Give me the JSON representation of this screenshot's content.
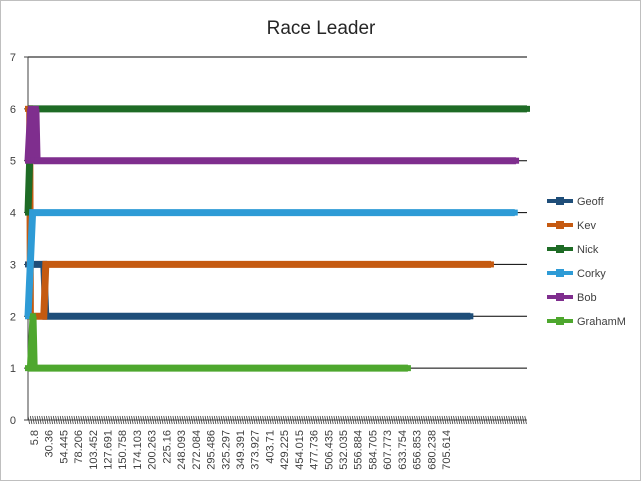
{
  "chart_data": {
    "type": "line",
    "title": "Race Leader",
    "xlabel": "",
    "ylabel": "",
    "ylim": [
      0,
      7
    ],
    "yticks": [
      0,
      1,
      2,
      3,
      4,
      5,
      6,
      7
    ],
    "x_tick_labels": [
      "5.8",
      "30.36",
      "54.445",
      "78.206",
      "103.452",
      "127.691",
      "150.758",
      "174.103",
      "200.263",
      "225.16",
      "248.093",
      "272.084",
      "295.486",
      "325.297",
      "349.391",
      "373.927",
      "403.71",
      "429.225",
      "454.015",
      "477.736",
      "506.435",
      "532.035",
      "556.884",
      "584.705",
      "607.773",
      "633.754",
      "656.853",
      "680.238",
      "705.614"
    ],
    "x_range": [
      5.8,
      781
    ],
    "grid": "horizontal",
    "legend_position": "right",
    "series": [
      {
        "name": "Geoff",
        "color": "#1f4e79",
        "points": [
          [
            5.8,
            3
          ],
          [
            30.36,
            3
          ],
          [
            33.5,
            2
          ],
          [
            693,
            2
          ]
        ]
      },
      {
        "name": "Kev",
        "color": "#c55a11",
        "points": [
          [
            5.8,
            6
          ],
          [
            8.5,
            6
          ],
          [
            9.5,
            2
          ],
          [
            30.36,
            2
          ],
          [
            33.5,
            3
          ],
          [
            725,
            3
          ]
        ]
      },
      {
        "name": "Nick",
        "color": "#1e6b25",
        "points": [
          [
            5.8,
            4
          ],
          [
            11,
            6
          ],
          [
            781,
            6
          ]
        ]
      },
      {
        "name": "Corky",
        "color": "#2e9bd6",
        "points": [
          [
            5.8,
            2
          ],
          [
            13,
            4
          ],
          [
            762,
            4
          ]
        ]
      },
      {
        "name": "Bob",
        "color": "#7f2e8e",
        "points": [
          [
            5.8,
            5
          ],
          [
            10,
            6
          ],
          [
            14,
            5
          ],
          [
            18,
            6
          ],
          [
            20,
            5
          ],
          [
            764,
            5
          ]
        ]
      },
      {
        "name": "GrahamM",
        "color": "#4ea72e",
        "points": [
          [
            5.8,
            1
          ],
          [
            9.5,
            1
          ],
          [
            13.5,
            2
          ],
          [
            15.5,
            1
          ],
          [
            596,
            1
          ]
        ]
      }
    ]
  }
}
